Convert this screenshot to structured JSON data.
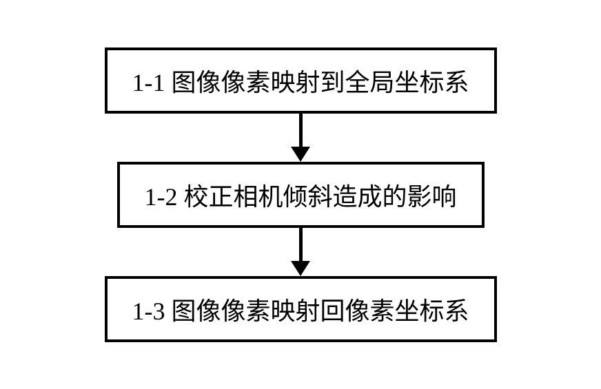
{
  "flowchart": {
    "type": "flowchart",
    "direction": "vertical",
    "background_color": "#ffffff",
    "nodes": [
      {
        "id": "step1",
        "label": "1-1 图像像素映射到全局坐标系",
        "border_color": "#000000",
        "border_width": 4,
        "text_color": "#000000",
        "font_size": 36,
        "font_family": "SimSun"
      },
      {
        "id": "step2",
        "label": "1-2 校正相机倾斜造成的影响",
        "border_color": "#000000",
        "border_width": 4,
        "text_color": "#000000",
        "font_size": 36,
        "font_family": "SimSun"
      },
      {
        "id": "step3",
        "label": "1-3 图像像素映射回像素坐标系",
        "border_color": "#000000",
        "border_width": 4,
        "text_color": "#000000",
        "font_size": 36,
        "font_family": "SimSun"
      }
    ],
    "edges": [
      {
        "from": "step1",
        "to": "step2",
        "arrow_color": "#000000",
        "line_width": 5,
        "arrow_head_size": 22
      },
      {
        "from": "step2",
        "to": "step3",
        "arrow_color": "#000000",
        "line_width": 5,
        "arrow_head_size": 22
      }
    ]
  }
}
